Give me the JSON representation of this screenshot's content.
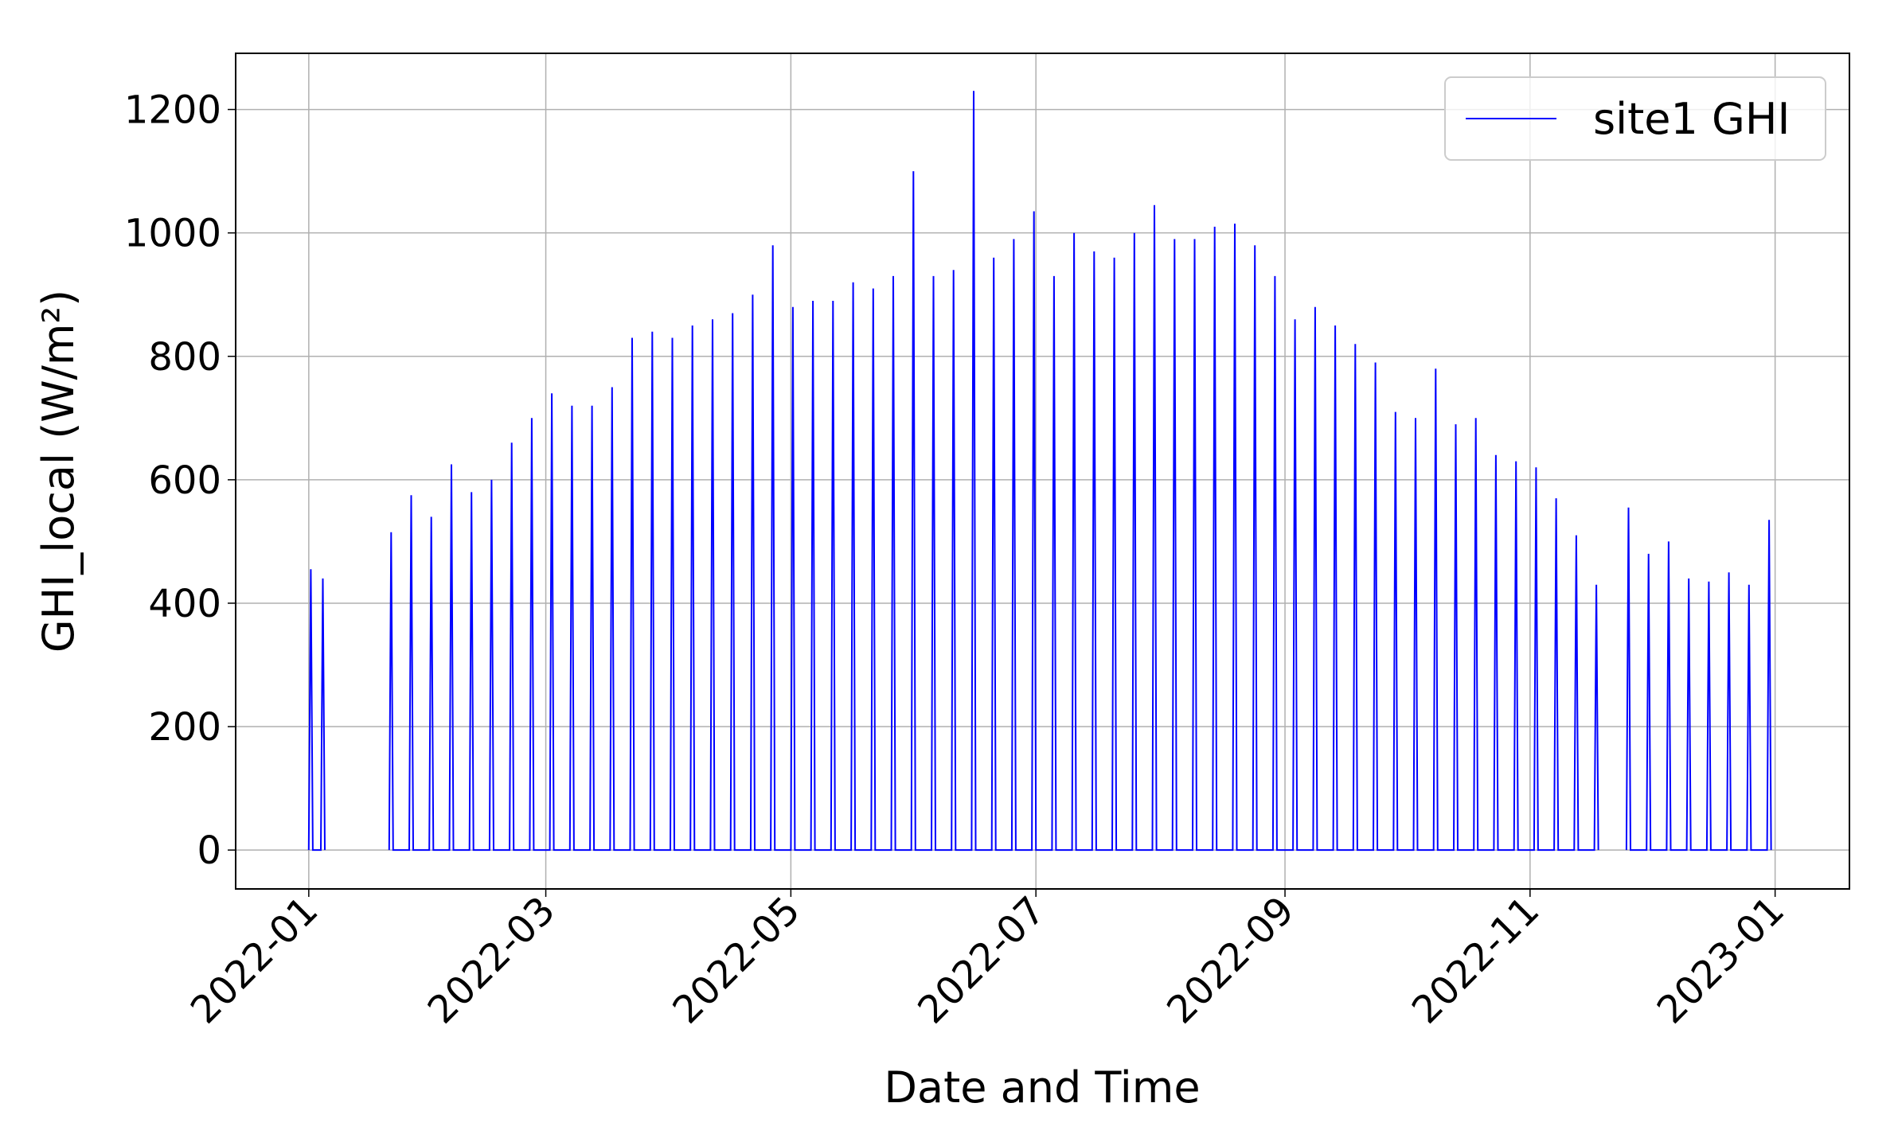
{
  "chart_data": {
    "type": "line",
    "xlabel": "Date and Time",
    "ylabel": "GHI_local (W/m²)",
    "grid": true,
    "legend": "upper right",
    "xlim": [
      -18.2,
      383.5
    ],
    "ylim": [
      -63,
      1291
    ],
    "xticks": [
      {
        "value": 0,
        "label": "2022-01"
      },
      {
        "value": 59,
        "label": "2022-03"
      },
      {
        "value": 120,
        "label": "2022-05"
      },
      {
        "value": 181,
        "label": "2022-07"
      },
      {
        "value": 243,
        "label": "2022-09"
      },
      {
        "value": 304,
        "label": "2022-11"
      },
      {
        "value": 365,
        "label": "2023-01"
      }
    ],
    "yticks": [
      0,
      200,
      400,
      600,
      800,
      1000,
      1200
    ],
    "x": [
      0,
      0.5,
      1,
      3,
      3.5,
      4,
      10,
      20,
      20.5,
      21,
      25,
      25.5,
      26,
      30,
      30.5,
      31,
      35,
      35.5,
      36,
      40,
      40.5,
      41,
      45,
      45.5,
      46,
      50,
      50.5,
      51,
      55,
      55.5,
      56,
      60,
      60.5,
      61,
      65,
      65.5,
      66,
      70,
      70.5,
      71,
      75,
      75.5,
      76,
      80,
      80.5,
      81,
      85,
      85.5,
      86,
      90,
      90.5,
      91,
      95,
      95.5,
      96,
      100,
      100.5,
      101,
      105,
      105.5,
      106,
      110,
      110.5,
      111,
      115,
      115.5,
      116,
      120,
      120.5,
      121,
      125,
      125.5,
      126,
      130,
      130.5,
      131,
      135,
      135.5,
      136,
      140,
      140.5,
      141,
      145,
      145.5,
      146,
      150,
      150.5,
      151,
      155,
      155.5,
      156,
      160,
      160.5,
      161,
      165,
      165.5,
      166,
      170,
      170.5,
      171,
      175,
      175.5,
      176,
      180,
      180.5,
      181,
      185,
      185.5,
      186,
      190,
      190.5,
      191,
      195,
      195.5,
      196,
      200,
      200.5,
      201,
      205,
      205.5,
      206,
      210,
      210.5,
      211,
      215,
      215.5,
      216,
      220,
      220.5,
      221,
      225,
      225.5,
      226,
      230,
      230.5,
      231,
      235,
      235.5,
      236,
      240,
      240.5,
      241,
      245,
      245.5,
      246,
      250,
      250.5,
      251,
      255,
      255.5,
      256,
      260,
      260.5,
      261,
      265,
      265.5,
      266,
      270,
      270.5,
      271,
      275,
      275.5,
      276,
      280,
      280.5,
      281,
      285,
      285.5,
      286,
      290,
      290.5,
      291,
      295,
      295.5,
      296,
      300,
      300.5,
      301,
      305,
      305.5,
      306,
      310,
      310.5,
      311,
      315,
      315.5,
      316,
      320,
      320.5,
      321,
      325,
      328,
      328.5,
      329,
      333,
      333.5,
      334,
      338,
      338.5,
      339,
      343,
      343.5,
      344,
      348,
      348.5,
      349,
      353,
      353.5,
      354,
      358,
      358.5,
      359,
      363,
      363.5,
      364
    ],
    "series": [
      {
        "name": "site1 GHI",
        "color": "#0000ff",
        "values": [
          0,
          455,
          0,
          0,
          440,
          0,
          null,
          0,
          515,
          0,
          0,
          575,
          0,
          0,
          540,
          0,
          0,
          625,
          0,
          0,
          580,
          0,
          0,
          600,
          0,
          0,
          660,
          0,
          0,
          700,
          0,
          0,
          740,
          0,
          0,
          720,
          0,
          0,
          720,
          0,
          0,
          750,
          0,
          0,
          830,
          0,
          0,
          840,
          0,
          0,
          830,
          0,
          0,
          850,
          0,
          0,
          860,
          0,
          0,
          870,
          0,
          0,
          900,
          0,
          0,
          980,
          0,
          0,
          880,
          0,
          0,
          890,
          0,
          0,
          890,
          0,
          0,
          920,
          0,
          0,
          910,
          0,
          0,
          930,
          0,
          0,
          1100,
          0,
          0,
          930,
          0,
          0,
          940,
          0,
          0,
          1230,
          0,
          0,
          960,
          0,
          0,
          990,
          0,
          0,
          1035,
          0,
          0,
          930,
          0,
          0,
          1000,
          0,
          0,
          970,
          0,
          0,
          960,
          0,
          0,
          1000,
          0,
          0,
          1045,
          0,
          0,
          990,
          0,
          0,
          990,
          0,
          0,
          1010,
          0,
          0,
          1015,
          0,
          0,
          980,
          0,
          0,
          930,
          0,
          0,
          860,
          0,
          0,
          880,
          0,
          0,
          850,
          0,
          0,
          820,
          0,
          0,
          790,
          0,
          0,
          710,
          0,
          0,
          700,
          0,
          0,
          780,
          0,
          0,
          690,
          0,
          0,
          700,
          0,
          0,
          640,
          0,
          0,
          630,
          0,
          0,
          620,
          0,
          0,
          570,
          0,
          0,
          510,
          0,
          0,
          430,
          0,
          null,
          0,
          555,
          0,
          0,
          480,
          0,
          0,
          500,
          0,
          0,
          440,
          0,
          0,
          435,
          0,
          0,
          450,
          0,
          0,
          430,
          0,
          0,
          535,
          0
        ]
      }
    ]
  }
}
